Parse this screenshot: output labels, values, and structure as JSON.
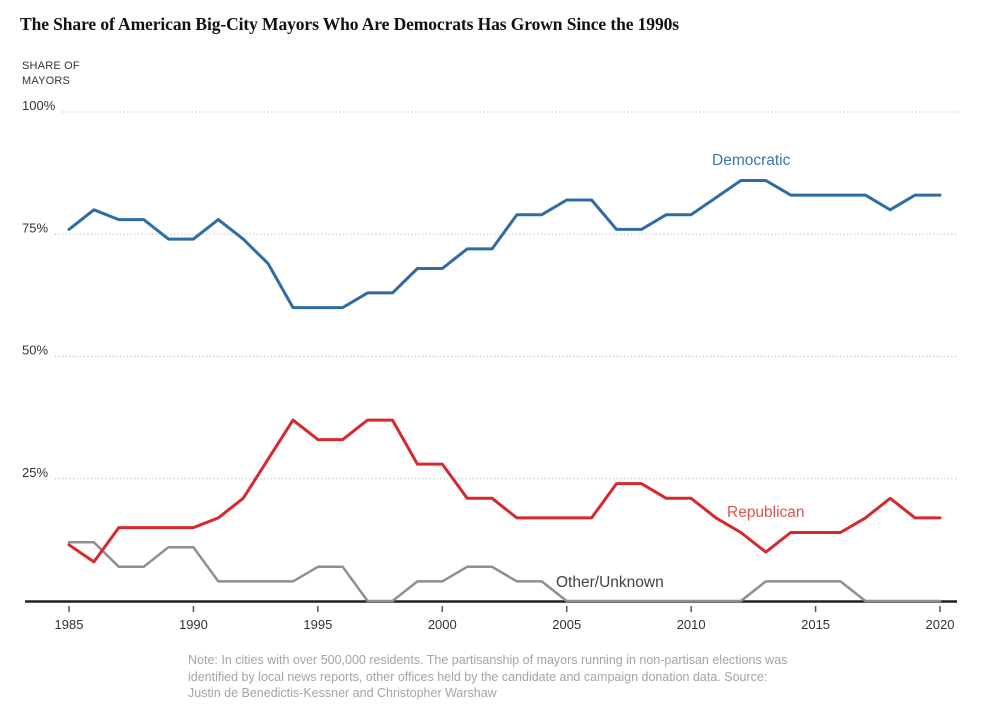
{
  "title": "The Share of American Big-City Mayors Who Are Democrats Has Grown Since the 1990s",
  "y_axis": {
    "title_lines": [
      "SHARE OF",
      "MAYORS"
    ],
    "ticks": [
      {
        "label": "100%",
        "value": 100
      },
      {
        "label": "75%",
        "value": 75
      },
      {
        "label": "50%",
        "value": 50
      },
      {
        "label": "25%",
        "value": 25
      }
    ]
  },
  "x_axis": {
    "tick_years": [
      1985,
      1990,
      1995,
      2000,
      2005,
      2010,
      2015,
      2020
    ]
  },
  "series_labels": {
    "democratic": "Democratic",
    "republican": "Republican",
    "other": "Other/Unknown"
  },
  "note_lines": [
    "Note: In cities with over 500,000 residents. The partisanship of mayors running in non-partisan elections was",
    "identified by local news reports, other offices held by the candidate and campaign donation data. Source:",
    "Justin de Benedictis-Kessner and Christopher Warshaw"
  ],
  "colors": {
    "democratic_line": "#2f6ca5",
    "republican_line": "#d6292c",
    "other_line": "#8f8f8f",
    "democratic_label": "#3e74a8",
    "republican_label": "#dc5450",
    "other_label": "#424242",
    "grid": "#ababab",
    "axis": "#222222",
    "axis_text": "#333333",
    "note_text": "#a4a4a4",
    "background": "#ffffff"
  },
  "chart_data": {
    "type": "line",
    "title": "The Share of American Big-City Mayors Who Are Democrats Has Grown Since the 1990s",
    "ylabel": "SHARE OF MAYORS",
    "xlabel": "",
    "ylim": [
      0,
      100
    ],
    "xlim": [
      1985,
      2020
    ],
    "grid": "horizontal dotted lines at 25, 50, 75, 100",
    "legend_position": "inline labels next to lines",
    "x": [
      1985,
      1986,
      1987,
      1988,
      1989,
      1990,
      1991,
      1992,
      1993,
      1994,
      1995,
      1996,
      1997,
      1998,
      1999,
      2000,
      2001,
      2002,
      2003,
      2004,
      2005,
      2006,
      2007,
      2008,
      2009,
      2010,
      2011,
      2012,
      2013,
      2014,
      2015,
      2016,
      2017,
      2018,
      2019,
      2020
    ],
    "series": [
      {
        "name": "Democratic",
        "color": "#2f6ca5",
        "values": [
          76,
          80,
          78,
          78,
          74,
          74,
          78,
          74,
          69,
          60,
          60,
          60,
          63,
          63,
          68,
          68,
          72,
          72,
          79,
          79,
          82,
          82,
          76,
          76,
          79,
          79,
          82.5,
          86,
          86,
          83,
          83,
          83,
          83,
          80,
          83,
          83
        ]
      },
      {
        "name": "Republican",
        "color": "#d6292c",
        "values": [
          11.5,
          8,
          15,
          15,
          15,
          15,
          17,
          21,
          29,
          37,
          33,
          33,
          37,
          37,
          28,
          28,
          21,
          21,
          17,
          17,
          17,
          17,
          24,
          24,
          21,
          21,
          17,
          14,
          10,
          14,
          14,
          14,
          17,
          21,
          17,
          17
        ]
      },
      {
        "name": "Other/Unknown",
        "color": "#8f8f8f",
        "values": [
          12,
          12,
          7,
          7,
          11,
          11,
          4,
          4,
          4,
          4,
          7,
          7,
          0,
          0,
          4,
          4,
          7,
          7,
          4,
          4,
          0,
          0,
          0,
          0,
          0,
          0,
          0,
          0,
          4,
          4,
          4,
          4,
          0,
          0,
          0,
          0
        ]
      }
    ]
  }
}
